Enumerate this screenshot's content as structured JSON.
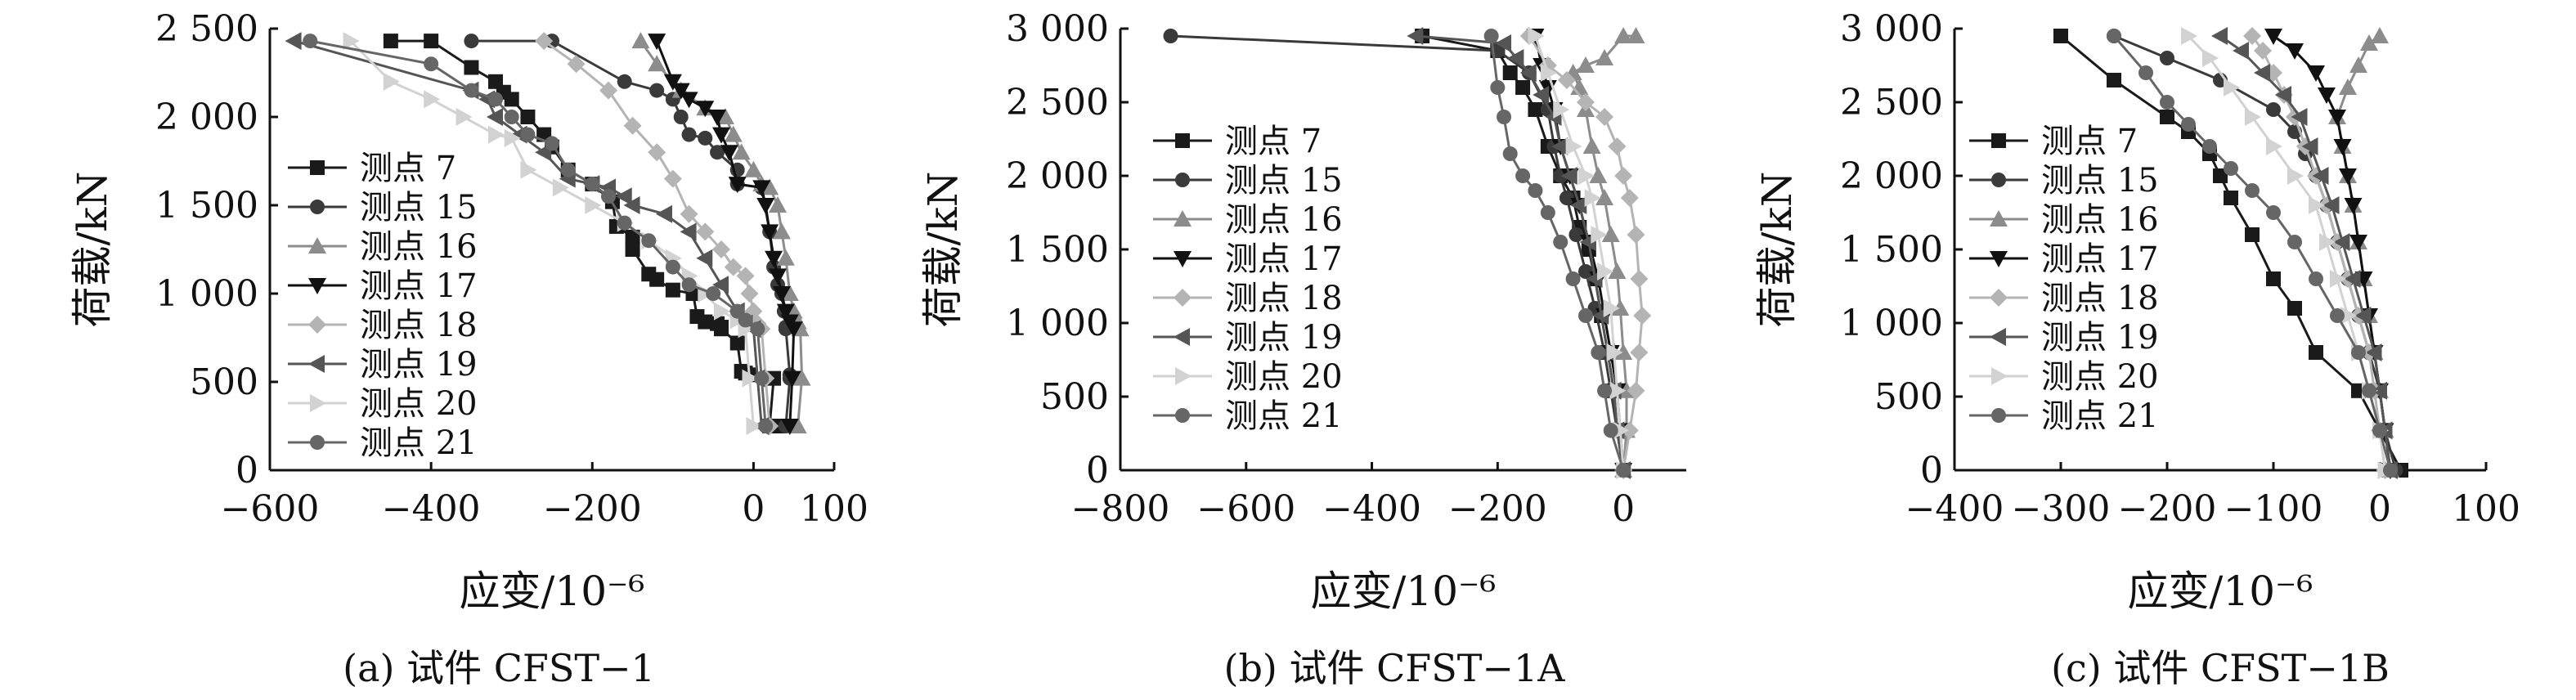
{
  "figure": {
    "captions": [
      "(a) 试件 CFST−1",
      "(b) 试件 CFST−1A",
      "(c) 试件 CFST−1B"
    ]
  },
  "series_styles": [
    {
      "name": "测点 7",
      "color": "#1a1a1a",
      "marker": "square"
    },
    {
      "name": "测点 15",
      "color": "#3a3a3a",
      "marker": "circle"
    },
    {
      "name": "测点 16",
      "color": "#8c8c8c",
      "marker": "triangle-up"
    },
    {
      "name": "测点 17",
      "color": "#111111",
      "marker": "triangle-down"
    },
    {
      "name": "测点 18",
      "color": "#b4b4b4",
      "marker": "diamond"
    },
    {
      "name": "测点 19",
      "color": "#555555",
      "marker": "triangle-left"
    },
    {
      "name": "测点 20",
      "color": "#d2d2d2",
      "marker": "triangle-right"
    },
    {
      "name": "测点 21",
      "color": "#666666",
      "marker": "circle"
    }
  ],
  "chart_data": [
    {
      "type": "line",
      "caption": "(a) 试件 CFST−1",
      "xlabel": "应变/10⁻⁶",
      "ylabel": "荷载/kN",
      "xlim": [
        -600,
        100
      ],
      "ylim": [
        0,
        2500
      ],
      "xticks": [
        -600,
        -400,
        -200,
        0,
        100
      ],
      "xtick_labels": [
        "−600",
        "−400",
        "−200",
        "0",
        "100"
      ],
      "yticks": [
        0,
        500,
        1000,
        1500,
        2000,
        2500
      ],
      "ytick_labels": [
        "0",
        "500",
        "1 000",
        "1 500",
        "2 000",
        "2 500"
      ],
      "grid": false,
      "legend": "center-left",
      "series": [
        {
          "name": "测点 7",
          "x": [
            30,
            20,
            25,
            -5,
            -10,
            -15,
            -20,
            -40,
            -40,
            -45,
            -60,
            -70,
            -75,
            -100,
            -120,
            -130,
            -150,
            -150,
            -170,
            -175,
            -200,
            -230,
            -250,
            -260,
            -280,
            -300,
            -310,
            -320,
            -350,
            -400,
            -450
          ],
          "y": [
            250,
            250,
            520,
            540,
            550,
            560,
            720,
            800,
            810,
            830,
            840,
            870,
            1000,
            1020,
            1080,
            1110,
            1250,
            1320,
            1380,
            1520,
            1620,
            1700,
            1830,
            1900,
            2000,
            2100,
            2140,
            2200,
            2280,
            2430,
            2430
          ]
        },
        {
          "name": "测点 15",
          "x": [
            40,
            45,
            45,
            40,
            40,
            38,
            35,
            30,
            25,
            20,
            10,
            -20,
            -20,
            -45,
            -60,
            -80,
            -90,
            -100,
            -120,
            -160,
            -250,
            -350
          ],
          "y": [
            250,
            520,
            540,
            800,
            810,
            900,
            1000,
            1050,
            1150,
            1350,
            1600,
            1620,
            1700,
            1800,
            1880,
            1900,
            2000,
            2100,
            2150,
            2200,
            2430,
            2430
          ]
        },
        {
          "name": "测点 16",
          "x": [
            55,
            60,
            58,
            55,
            50,
            45,
            40,
            35,
            30,
            20,
            10,
            0,
            -15,
            -25,
            -35,
            -60,
            -90,
            -120,
            -140
          ],
          "y": [
            250,
            520,
            800,
            840,
            900,
            1000,
            1200,
            1350,
            1500,
            1600,
            1620,
            1700,
            1800,
            1900,
            2000,
            2050,
            2150,
            2300,
            2430
          ]
        },
        {
          "name": "测点 17",
          "x": [
            45,
            48,
            50,
            45,
            40,
            35,
            30,
            25,
            20,
            15,
            10,
            -20,
            -30,
            -40,
            -45,
            -60,
            -80,
            -90,
            -100,
            -120
          ],
          "y": [
            250,
            520,
            800,
            840,
            900,
            1000,
            1100,
            1200,
            1350,
            1500,
            1600,
            1620,
            1800,
            1900,
            2000,
            2050,
            2100,
            2150,
            2200,
            2430
          ]
        },
        {
          "name": "测点 18",
          "x": [
            20,
            15,
            10,
            5,
            0,
            -5,
            -10,
            -25,
            -40,
            -60,
            -80,
            -100,
            -120,
            -150,
            -180,
            -220,
            -260
          ],
          "y": [
            250,
            520,
            800,
            830,
            900,
            1000,
            1100,
            1150,
            1250,
            1350,
            1450,
            1650,
            1800,
            1950,
            2150,
            2300,
            2430
          ]
        },
        {
          "name": "测点 19",
          "x": [
            10,
            5,
            0,
            -10,
            -20,
            -40,
            -60,
            -80,
            -110,
            -150,
            -160,
            -180,
            -200,
            -230,
            -260,
            -290,
            -320,
            -330,
            -350,
            -570
          ],
          "y": [
            250,
            520,
            800,
            830,
            900,
            1050,
            1200,
            1350,
            1450,
            1500,
            1550,
            1600,
            1620,
            1650,
            1800,
            1900,
            2000,
            2100,
            2150,
            2430
          ]
        },
        {
          "name": "测点 20",
          "x": [
            0,
            -5,
            -10,
            -20,
            -40,
            -60,
            -80,
            -100,
            -130,
            -160,
            -200,
            -240,
            -280,
            -300,
            -320,
            -360,
            -400,
            -450,
            -500
          ],
          "y": [
            250,
            520,
            800,
            850,
            900,
            1000,
            1100,
            1200,
            1300,
            1400,
            1500,
            1600,
            1700,
            1880,
            1900,
            2000,
            2100,
            2200,
            2430
          ]
        },
        {
          "name": "测点 21",
          "x": [
            15,
            10,
            5,
            -10,
            -20,
            -50,
            -80,
            -100,
            -130,
            -160,
            -180,
            -200,
            -230,
            -250,
            -280,
            -300,
            -320,
            -350,
            -400,
            -550
          ],
          "y": [
            250,
            520,
            800,
            850,
            900,
            1000,
            1050,
            1150,
            1300,
            1400,
            1550,
            1620,
            1700,
            1850,
            1900,
            2000,
            2100,
            2150,
            2300,
            2430
          ]
        }
      ]
    },
    {
      "type": "line",
      "caption": "(b) 试件 CFST−1A",
      "xlabel": "应变/10⁻⁶",
      "ylabel": "荷载/kN",
      "xlim": [
        -800,
        100
      ],
      "ylim": [
        0,
        3000
      ],
      "xticks": [
        -800,
        -600,
        -400,
        -200,
        0
      ],
      "xtick_labels": [
        "−800",
        "−600",
        "−400",
        "−200",
        "0"
      ],
      "yticks": [
        0,
        500,
        1000,
        1500,
        2000,
        2500,
        3000
      ],
      "ytick_labels": [
        "0",
        "500",
        "1 000",
        "1 500",
        "2 000",
        "2 500",
        "3 000"
      ],
      "grid": false,
      "legend": "center-left",
      "series": [
        {
          "name": "测点 7",
          "x": [
            0,
            -10,
            -15,
            -25,
            -35,
            -45,
            -55,
            -70,
            -80,
            -100,
            -120,
            -140,
            -160,
            -180,
            -200,
            -320
          ],
          "y": [
            0,
            270,
            540,
            800,
            1050,
            1300,
            1500,
            1650,
            1850,
            2000,
            2200,
            2450,
            2600,
            2700,
            2850,
            2950
          ]
        },
        {
          "name": "测点 15",
          "x": [
            0,
            -10,
            -20,
            -30,
            -45,
            -60,
            -75,
            -90,
            -100,
            -110,
            -120,
            -150,
            -200,
            -720
          ],
          "y": [
            0,
            270,
            540,
            800,
            1100,
            1350,
            1600,
            1850,
            2000,
            2200,
            2450,
            2700,
            2850,
            2950
          ]
        },
        {
          "name": "测点 16",
          "x": [
            0,
            5,
            5,
            0,
            -5,
            -10,
            -20,
            -30,
            -40,
            -50,
            -60,
            -70,
            -80,
            -60,
            -30,
            0,
            20
          ],
          "y": [
            0,
            270,
            540,
            800,
            1100,
            1350,
            1600,
            1850,
            2000,
            2200,
            2450,
            2600,
            2700,
            2750,
            2800,
            2950,
            2950
          ]
        },
        {
          "name": "测点 17",
          "x": [
            0,
            -5,
            -10,
            -20,
            -30,
            -40,
            -55,
            -70,
            -85,
            -100,
            -110,
            -120,
            -130,
            -140
          ],
          "y": [
            0,
            270,
            540,
            800,
            1050,
            1300,
            1550,
            1800,
            2000,
            2200,
            2450,
            2600,
            2750,
            2950
          ]
        },
        {
          "name": "测点 18",
          "x": [
            0,
            10,
            20,
            25,
            30,
            25,
            20,
            10,
            0,
            -10,
            -30,
            -60,
            -90,
            -120,
            -150
          ],
          "y": [
            0,
            270,
            540,
            800,
            1050,
            1300,
            1600,
            1850,
            2000,
            2200,
            2400,
            2500,
            2650,
            2750,
            2950
          ]
        },
        {
          "name": "测点 19",
          "x": [
            0,
            -10,
            -15,
            -25,
            -35,
            -45,
            -55,
            -70,
            -85,
            -100,
            -110,
            -130,
            -150,
            -170,
            -190,
            -330
          ],
          "y": [
            0,
            270,
            540,
            800,
            1050,
            1300,
            1550,
            1800,
            2000,
            2200,
            2400,
            2550,
            2700,
            2800,
            2900,
            2950
          ]
        },
        {
          "name": "测点 20",
          "x": [
            0,
            -5,
            -10,
            -15,
            -20,
            -30,
            -40,
            -50,
            -60,
            -80,
            -100,
            -120,
            -140
          ],
          "y": [
            0,
            270,
            540,
            800,
            1100,
            1350,
            1600,
            1850,
            2000,
            2200,
            2450,
            2700,
            2950
          ]
        },
        {
          "name": "测点 21",
          "x": [
            0,
            -20,
            -30,
            -40,
            -60,
            -80,
            -100,
            -120,
            -140,
            -160,
            -180,
            -190,
            -200,
            -210
          ],
          "y": [
            0,
            270,
            540,
            800,
            1050,
            1300,
            1550,
            1750,
            1900,
            2000,
            2150,
            2400,
            2600,
            2950
          ]
        }
      ]
    },
    {
      "type": "line",
      "caption": "(c) 试件 CFST−1B",
      "xlabel": "应变/10⁻⁶",
      "ylabel": "荷载/kN",
      "xlim": [
        -400,
        100
      ],
      "ylim": [
        0,
        3000
      ],
      "xticks": [
        -400,
        -300,
        -200,
        -100,
        0,
        100
      ],
      "xtick_labels": [
        "−400",
        "−300",
        "−200",
        "−100",
        "0",
        "100"
      ],
      "yticks": [
        0,
        500,
        1000,
        1500,
        2000,
        2500,
        3000
      ],
      "ytick_labels": [
        "0",
        "500",
        "1 000",
        "1 500",
        "2 000",
        "2 500",
        "3 000"
      ],
      "grid": false,
      "legend": "center-left",
      "series": [
        {
          "name": "测点 7",
          "x": [
            20,
            0,
            -20,
            -60,
            -80,
            -100,
            -120,
            -140,
            -150,
            -160,
            -180,
            -200,
            -250,
            -300
          ],
          "y": [
            0,
            270,
            540,
            800,
            1100,
            1300,
            1600,
            1850,
            2000,
            2150,
            2300,
            2400,
            2650,
            2950
          ]
        },
        {
          "name": "测点 15",
          "x": [
            15,
            5,
            0,
            -10,
            -20,
            -30,
            -40,
            -50,
            -60,
            -70,
            -80,
            -100,
            -150,
            -200,
            -250
          ],
          "y": [
            0,
            270,
            540,
            800,
            1050,
            1300,
            1550,
            1800,
            2000,
            2150,
            2300,
            2450,
            2650,
            2800,
            2950
          ]
        },
        {
          "name": "测点 16",
          "x": [
            10,
            5,
            0,
            -5,
            -10,
            -15,
            -20,
            -25,
            -30,
            -35,
            -40,
            -30,
            -20,
            -10,
            0
          ],
          "y": [
            0,
            270,
            540,
            800,
            1050,
            1300,
            1550,
            1800,
            2000,
            2200,
            2400,
            2600,
            2750,
            2900,
            2950
          ]
        },
        {
          "name": "测点 17",
          "x": [
            10,
            5,
            0,
            -5,
            -10,
            -15,
            -20,
            -25,
            -30,
            -35,
            -40,
            -50,
            -60,
            -80,
            -100
          ],
          "y": [
            0,
            270,
            540,
            800,
            1050,
            1300,
            1550,
            1800,
            2000,
            2200,
            2400,
            2550,
            2700,
            2850,
            2950
          ]
        },
        {
          "name": "测点 18",
          "x": [
            5,
            0,
            -5,
            -10,
            -20,
            -30,
            -40,
            -50,
            -60,
            -70,
            -80,
            -90,
            -100,
            -110,
            -120
          ],
          "y": [
            0,
            270,
            540,
            800,
            1050,
            1300,
            1550,
            1800,
            2000,
            2200,
            2400,
            2550,
            2700,
            2850,
            2950
          ]
        },
        {
          "name": "测点 19",
          "x": [
            10,
            5,
            0,
            -5,
            -15,
            -25,
            -35,
            -45,
            -55,
            -65,
            -75,
            -90,
            -110,
            -130,
            -150
          ],
          "y": [
            0,
            270,
            540,
            800,
            1050,
            1300,
            1550,
            1800,
            2000,
            2200,
            2400,
            2550,
            2700,
            2850,
            2950
          ]
        },
        {
          "name": "测点 20",
          "x": [
            5,
            0,
            -10,
            -20,
            -30,
            -40,
            -50,
            -60,
            -80,
            -100,
            -120,
            -140,
            -160,
            -180
          ],
          "y": [
            0,
            270,
            540,
            800,
            1050,
            1300,
            1550,
            1800,
            2000,
            2200,
            2400,
            2600,
            2800,
            2950
          ]
        },
        {
          "name": "测点 21",
          "x": [
            10,
            0,
            -10,
            -20,
            -40,
            -60,
            -80,
            -100,
            -120,
            -140,
            -160,
            -180,
            -200,
            -220,
            -250
          ],
          "y": [
            0,
            270,
            540,
            800,
            1050,
            1300,
            1550,
            1750,
            1900,
            2050,
            2200,
            2350,
            2500,
            2700,
            2950
          ]
        }
      ]
    }
  ]
}
